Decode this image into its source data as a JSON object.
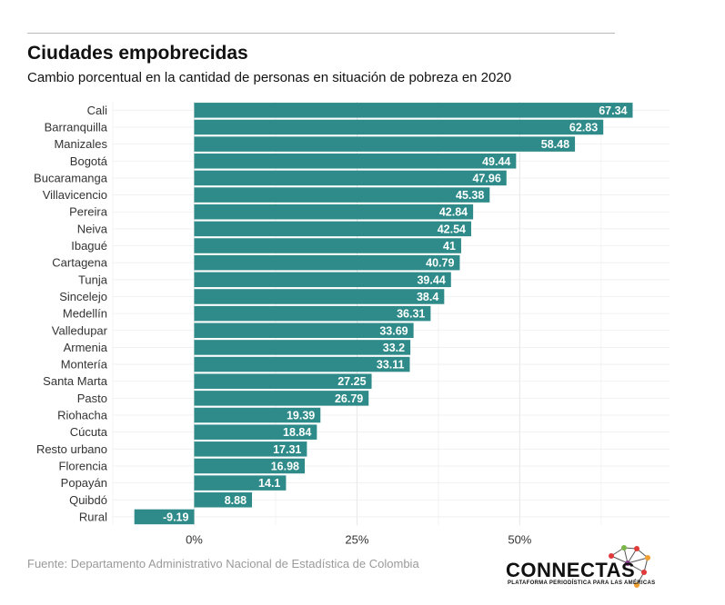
{
  "header": {
    "title": "Ciudades empobrecidas",
    "subtitle": "Cambio porcentual en la cantidad de personas en situación de pobreza en 2020"
  },
  "footer": {
    "source": "Fuente: Departamento Administrativo Nacional de Estadística de Colombia",
    "logo_name": "CONNECTAS",
    "logo_tagline": "PLATAFORMA PERIODÍSTICA PARA LAS AMÉRICAS"
  },
  "colors": {
    "bar": "#2e8b8a",
    "grid": "#e6e6e6",
    "label": "#ffffff",
    "axis_text": "#333333"
  },
  "chart_data": {
    "type": "bar",
    "orientation": "horizontal",
    "title": "Ciudades empobrecidas",
    "subtitle": "Cambio porcentual en la cantidad de personas en situación de pobreza en 2020",
    "categories": [
      "Cali",
      "Barranquilla",
      "Manizales",
      "Bogotá",
      "Bucaramanga",
      "Villavicencio",
      "Pereira",
      "Neiva",
      "Ibagué",
      "Cartagena",
      "Tunja",
      "Sincelejo",
      "Medellín",
      "Valledupar",
      "Armenia",
      "Montería",
      "Santa Marta",
      "Pasto",
      "Riohacha",
      "Cúcuta",
      "Resto urbano",
      "Florencia",
      "Popayán",
      "Quibdó",
      "Rural"
    ],
    "values": [
      67.34,
      62.83,
      58.48,
      49.44,
      47.96,
      45.38,
      42.84,
      42.54,
      41,
      40.79,
      39.44,
      38.4,
      36.31,
      33.69,
      33.2,
      33.11,
      27.25,
      26.79,
      19.39,
      18.84,
      17.31,
      16.98,
      14.1,
      8.88,
      -9.19
    ],
    "value_labels": [
      "67.34",
      "62.83",
      "58.48",
      "49.44",
      "47.96",
      "45.38",
      "42.84",
      "42.54",
      "41",
      "40.79",
      "39.44",
      "38.4",
      "36.31",
      "33.69",
      "33.2",
      "33.11",
      "27.25",
      "26.79",
      "19.39",
      "18.84",
      "17.31",
      "16.98",
      "14.1",
      "8.88",
      "-9.19"
    ],
    "xticks": [
      0,
      25,
      50
    ],
    "xtick_labels": [
      "0%",
      "25%",
      "50%"
    ],
    "xlim": [
      -12.5,
      73
    ],
    "xlabel": "",
    "ylabel": "",
    "grid": true
  }
}
